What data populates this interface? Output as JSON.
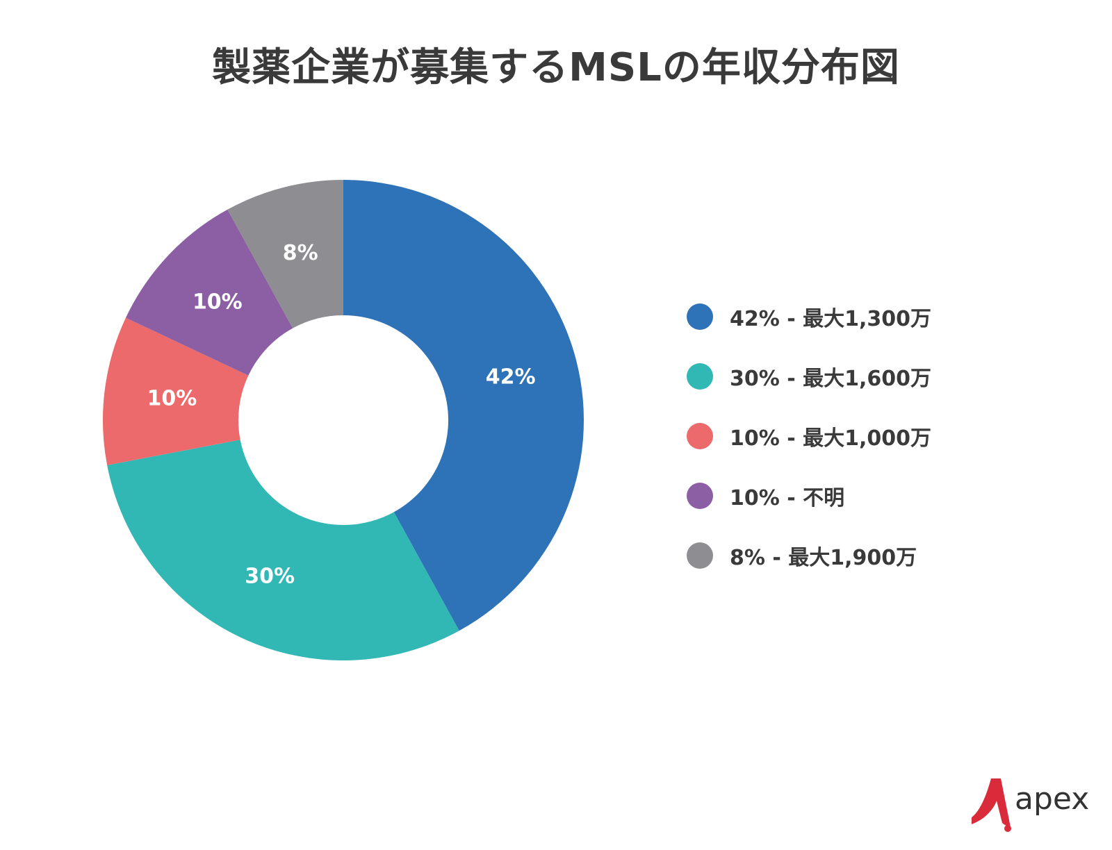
{
  "title": "製薬企業が募集するMSLの年収分布図",
  "chart_data": {
    "type": "pie",
    "title": "製薬企業が募集するMSLの年収分布図",
    "donut": true,
    "start_angle": "12 o'clock",
    "direction": "clockwise",
    "legend_position": "right",
    "slices": [
      {
        "value": 42,
        "label": "42%",
        "legend": "42% - 最大1,300万",
        "color": "#2E72B8"
      },
      {
        "value": 30,
        "label": "30%",
        "legend": "30% - 最大1,600万",
        "color": "#31B8B5"
      },
      {
        "value": 10,
        "label": "10%",
        "legend": "10% - 最大1,000万",
        "color": "#EC6A6B"
      },
      {
        "value": 10,
        "label": "10%",
        "legend": "10% - 不明",
        "color": "#8C5FA5"
      },
      {
        "value": 8,
        "label": "8%",
        "legend": "8% - 最大1,900万",
        "color": "#8E8D92"
      }
    ]
  },
  "logo": {
    "text": "apex",
    "color": "#D92B3A"
  }
}
